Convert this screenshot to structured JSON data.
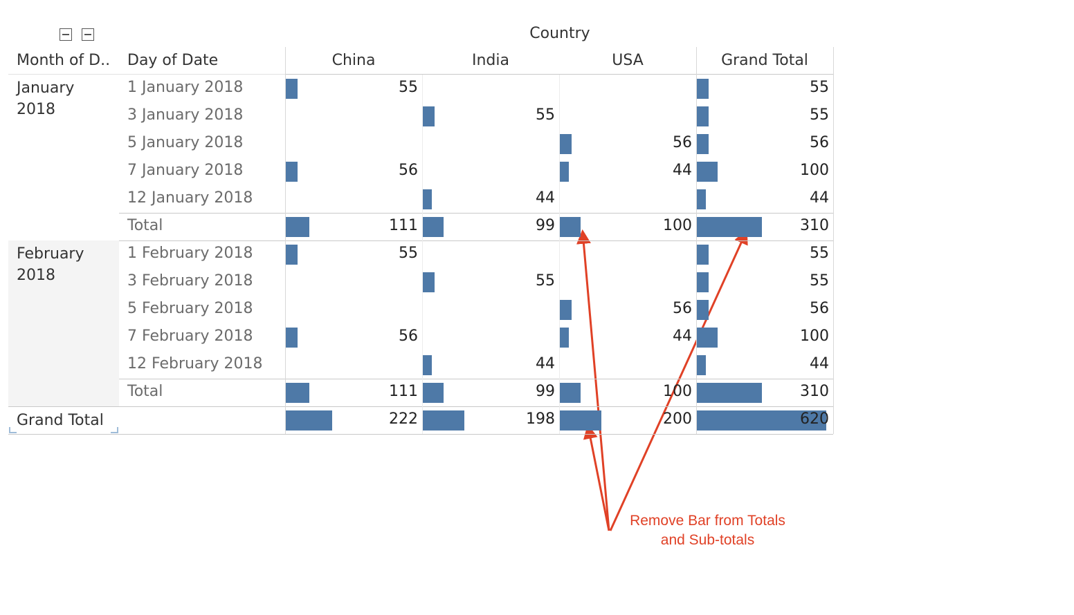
{
  "header": {
    "column_group": "Country",
    "row_headers": [
      "Month of D..",
      "Day of Date"
    ],
    "countries": [
      "China",
      "India",
      "USA"
    ],
    "grand_total_col": "Grand Total"
  },
  "months": [
    {
      "label": "January\n2018",
      "days": [
        {
          "label": "1 January 2018",
          "values": [
            55,
            null,
            null
          ],
          "total": 55
        },
        {
          "label": "3 January 2018",
          "values": [
            null,
            55,
            null
          ],
          "total": 55
        },
        {
          "label": "5 January 2018",
          "values": [
            null,
            null,
            56
          ],
          "total": 56
        },
        {
          "label": "7 January 2018",
          "values": [
            56,
            null,
            44
          ],
          "total": 100
        },
        {
          "label": "12 January 2018",
          "values": [
            null,
            44,
            null
          ],
          "total": 44
        }
      ],
      "subtotal": {
        "label": "Total",
        "values": [
          111,
          99,
          100
        ],
        "total": 310
      }
    },
    {
      "label": "February\n2018",
      "days": [
        {
          "label": "1 February 2018",
          "values": [
            55,
            null,
            null
          ],
          "total": 55
        },
        {
          "label": "3 February 2018",
          "values": [
            null,
            55,
            null
          ],
          "total": 55
        },
        {
          "label": "5 February 2018",
          "values": [
            null,
            null,
            56
          ],
          "total": 56
        },
        {
          "label": "7 February 2018",
          "values": [
            56,
            null,
            44
          ],
          "total": 100
        },
        {
          "label": "12 February 2018",
          "values": [
            null,
            44,
            null
          ],
          "total": 44
        }
      ],
      "subtotal": {
        "label": "Total",
        "values": [
          111,
          99,
          100
        ],
        "total": 310
      }
    }
  ],
  "grand_total": {
    "label": "Grand Total",
    "values": [
      222,
      198,
      200
    ],
    "total": 620
  },
  "bar_color": "#4e79a7",
  "annotation": {
    "text": "Remove Bar from Totals\nand Sub-totals",
    "color": "#e04126"
  }
}
